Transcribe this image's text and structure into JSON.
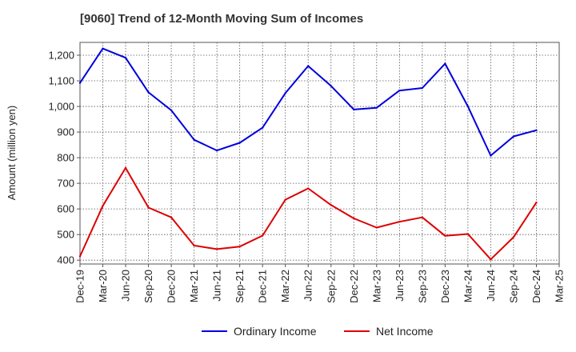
{
  "chart_data": {
    "type": "line",
    "title": "[9060]  Trend of 12-Month Moving Sum of Incomes",
    "xlabel": "",
    "ylabel": "Amount (million yen)",
    "ylim": [
      385,
      1250
    ],
    "yticks": [
      400,
      500,
      600,
      700,
      800,
      900,
      1000,
      1100,
      1200
    ],
    "ytick_labels": [
      "400",
      "500",
      "600",
      "700",
      "800",
      "900",
      "1,000",
      "1,100",
      "1,200"
    ],
    "categories": [
      "Dec-19",
      "Mar-20",
      "Jun-20",
      "Sep-20",
      "Dec-20",
      "Mar-21",
      "Jun-21",
      "Sep-21",
      "Dec-21",
      "Mar-22",
      "Jun-22",
      "Sep-22",
      "Dec-22",
      "Mar-23",
      "Jun-23",
      "Sep-23",
      "Dec-23",
      "Mar-24",
      "Jun-24",
      "Sep-24",
      "Dec-24",
      "Mar-25"
    ],
    "grid": true,
    "legend_position": "bottom-center",
    "series": [
      {
        "name": "Ordinary Income",
        "color": "#0000dd",
        "values": [
          1092,
          1226,
          1190,
          1055,
          985,
          870,
          828,
          858,
          917,
          1052,
          1158,
          1080,
          988,
          995,
          1062,
          1072,
          1167,
          1000,
          808,
          883,
          907,
          null
        ]
      },
      {
        "name": "Net Income",
        "color": "#dd0000",
        "values": [
          415,
          612,
          760,
          605,
          567,
          457,
          443,
          453,
          496,
          636,
          680,
          615,
          563,
          527,
          550,
          567,
          495,
          502,
          403,
          490,
          625,
          null
        ]
      }
    ]
  }
}
